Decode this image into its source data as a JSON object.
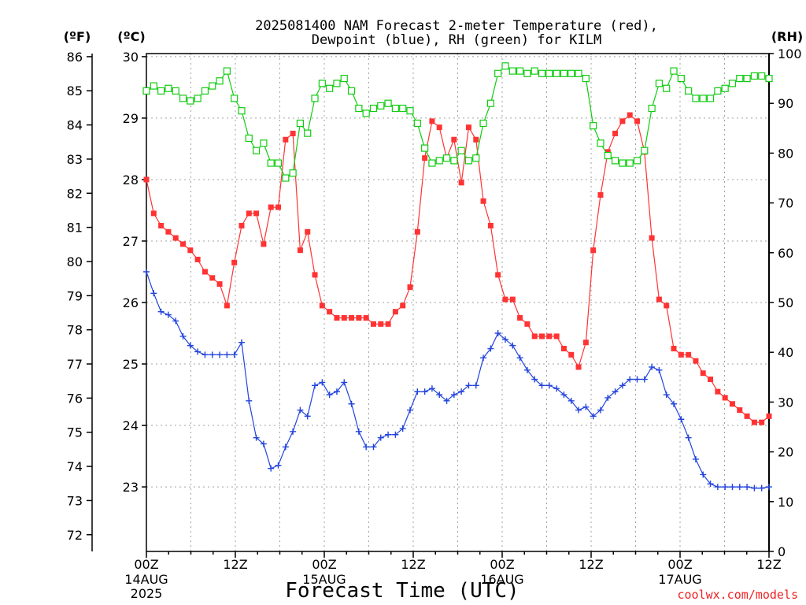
{
  "chart_data": {
    "type": "line",
    "title_line1": "2025081400 NAM Forecast 2-meter Temperature (red),",
    "title_line2": "Dewpoint (blue), RH (green) for KILM",
    "unit_f": "(ºF)",
    "unit_c": "(ºC)",
    "unit_rh": "(RH)",
    "xlabel": "Forecast Time (UTC)",
    "credit": "coolwx.com/models",
    "x_hour_range": [
      0,
      84
    ],
    "x_ticks": [
      {
        "h": 0,
        "label": "00Z",
        "sub1": "14AUG",
        "sub2": "2025"
      },
      {
        "h": 12,
        "label": "12Z",
        "sub1": "",
        "sub2": ""
      },
      {
        "h": 24,
        "label": "00Z",
        "sub1": "15AUG",
        "sub2": ""
      },
      {
        "h": 36,
        "label": "12Z",
        "sub1": "",
        "sub2": ""
      },
      {
        "h": 48,
        "label": "00Z",
        "sub1": "16AUG",
        "sub2": ""
      },
      {
        "h": 60,
        "label": "12Z",
        "sub1": "",
        "sub2": ""
      },
      {
        "h": 72,
        "label": "00Z",
        "sub1": "17AUG",
        "sub2": ""
      },
      {
        "h": 84,
        "label": "12Z",
        "sub1": "",
        "sub2": ""
      }
    ],
    "f_ticks": [
      72,
      73,
      74,
      75,
      76,
      77,
      78,
      79,
      80,
      81,
      82,
      83,
      84,
      85,
      86
    ],
    "c_ticks": [
      23,
      24,
      25,
      26,
      27,
      28,
      29,
      30
    ],
    "rh_ticks": [
      0,
      10,
      20,
      30,
      40,
      50,
      60,
      70,
      80,
      90,
      100
    ],
    "y_c_range": [
      21.95,
      30.05
    ],
    "y_rh_range": [
      0,
      100
    ],
    "grid": true,
    "colors": {
      "temperature": "#ff3333",
      "dewpoint": "#2244dd",
      "rh": "#11cc11",
      "grid": "#a0a0a0",
      "credit": "#ee2222"
    },
    "series": [
      {
        "key": "temperature",
        "unit": "C",
        "marker": "filled-square",
        "values": [
          28.0,
          27.45,
          27.25,
          27.15,
          27.05,
          26.95,
          26.85,
          26.7,
          26.5,
          26.4,
          26.3,
          25.95,
          26.65,
          27.25,
          27.45,
          27.45,
          26.95,
          27.55,
          27.55,
          28.65,
          28.75,
          26.85,
          27.15,
          26.45,
          25.95,
          25.85,
          25.75,
          25.75,
          25.75,
          25.75,
          25.75,
          25.65,
          25.65,
          25.65,
          25.85,
          25.95,
          26.25,
          27.15,
          28.35,
          28.95,
          28.85,
          28.35,
          28.65,
          27.95,
          28.85,
          28.65,
          27.65,
          27.25,
          26.45,
          26.05,
          26.05,
          25.75,
          25.65,
          25.45,
          25.45,
          25.45,
          25.45,
          25.25,
          25.15,
          24.95,
          25.35,
          26.85,
          27.75,
          28.45,
          28.75,
          28.95,
          29.05,
          28.95,
          28.45,
          27.05,
          26.05,
          25.95,
          25.25,
          25.15,
          25.15,
          25.05,
          24.85,
          24.75,
          24.55,
          24.45,
          24.35,
          24.25,
          24.15,
          24.05,
          24.05,
          24.15
        ]
      },
      {
        "key": "dewpoint",
        "unit": "C",
        "marker": "plus",
        "values": [
          26.5,
          26.15,
          25.85,
          25.8,
          25.7,
          25.45,
          25.3,
          25.2,
          25.15,
          25.15,
          25.15,
          25.15,
          25.15,
          25.35,
          24.4,
          23.8,
          23.7,
          23.3,
          23.35,
          23.65,
          23.9,
          24.25,
          24.15,
          24.65,
          24.7,
          24.5,
          24.55,
          24.7,
          24.35,
          23.9,
          23.65,
          23.65,
          23.8,
          23.85,
          23.85,
          23.95,
          24.25,
          24.55,
          24.55,
          24.6,
          24.5,
          24.4,
          24.5,
          24.55,
          24.65,
          24.65,
          25.1,
          25.25,
          25.5,
          25.4,
          25.3,
          25.1,
          24.9,
          24.75,
          24.65,
          24.65,
          24.6,
          24.5,
          24.4,
          24.25,
          24.3,
          24.15,
          24.25,
          24.45,
          24.55,
          24.65,
          24.75,
          24.75,
          24.75,
          24.95,
          24.9,
          24.5,
          24.35,
          24.1,
          23.8,
          23.45,
          23.2,
          23.05,
          23.0,
          23.0,
          23.0,
          23.0,
          23.0,
          22.98,
          22.98,
          23.0
        ]
      },
      {
        "key": "rh",
        "unit": "%",
        "marker": "open-square",
        "values": [
          92.5,
          93.5,
          92.5,
          93,
          92.5,
          91,
          90.5,
          91,
          92.5,
          93.5,
          94.5,
          96.5,
          91,
          88.5,
          83,
          80.5,
          82,
          78,
          78,
          75,
          76,
          86,
          84,
          91,
          94,
          93,
          94,
          95,
          92.5,
          89,
          88,
          89,
          89.5,
          90,
          89,
          89,
          88.5,
          86,
          81,
          78,
          78.5,
          79,
          78.5,
          80.5,
          78.5,
          79,
          86,
          90,
          96,
          97.5,
          96.5,
          96.5,
          96,
          96.5,
          96,
          96,
          96,
          96,
          96,
          96,
          95,
          85.5,
          82,
          79.5,
          78.5,
          78,
          78,
          78.5,
          80.5,
          89,
          94,
          93,
          96.5,
          95,
          92.5,
          91,
          91,
          91,
          92.5,
          93,
          94,
          95,
          95,
          95.5,
          95.5,
          95
        ]
      }
    ]
  }
}
